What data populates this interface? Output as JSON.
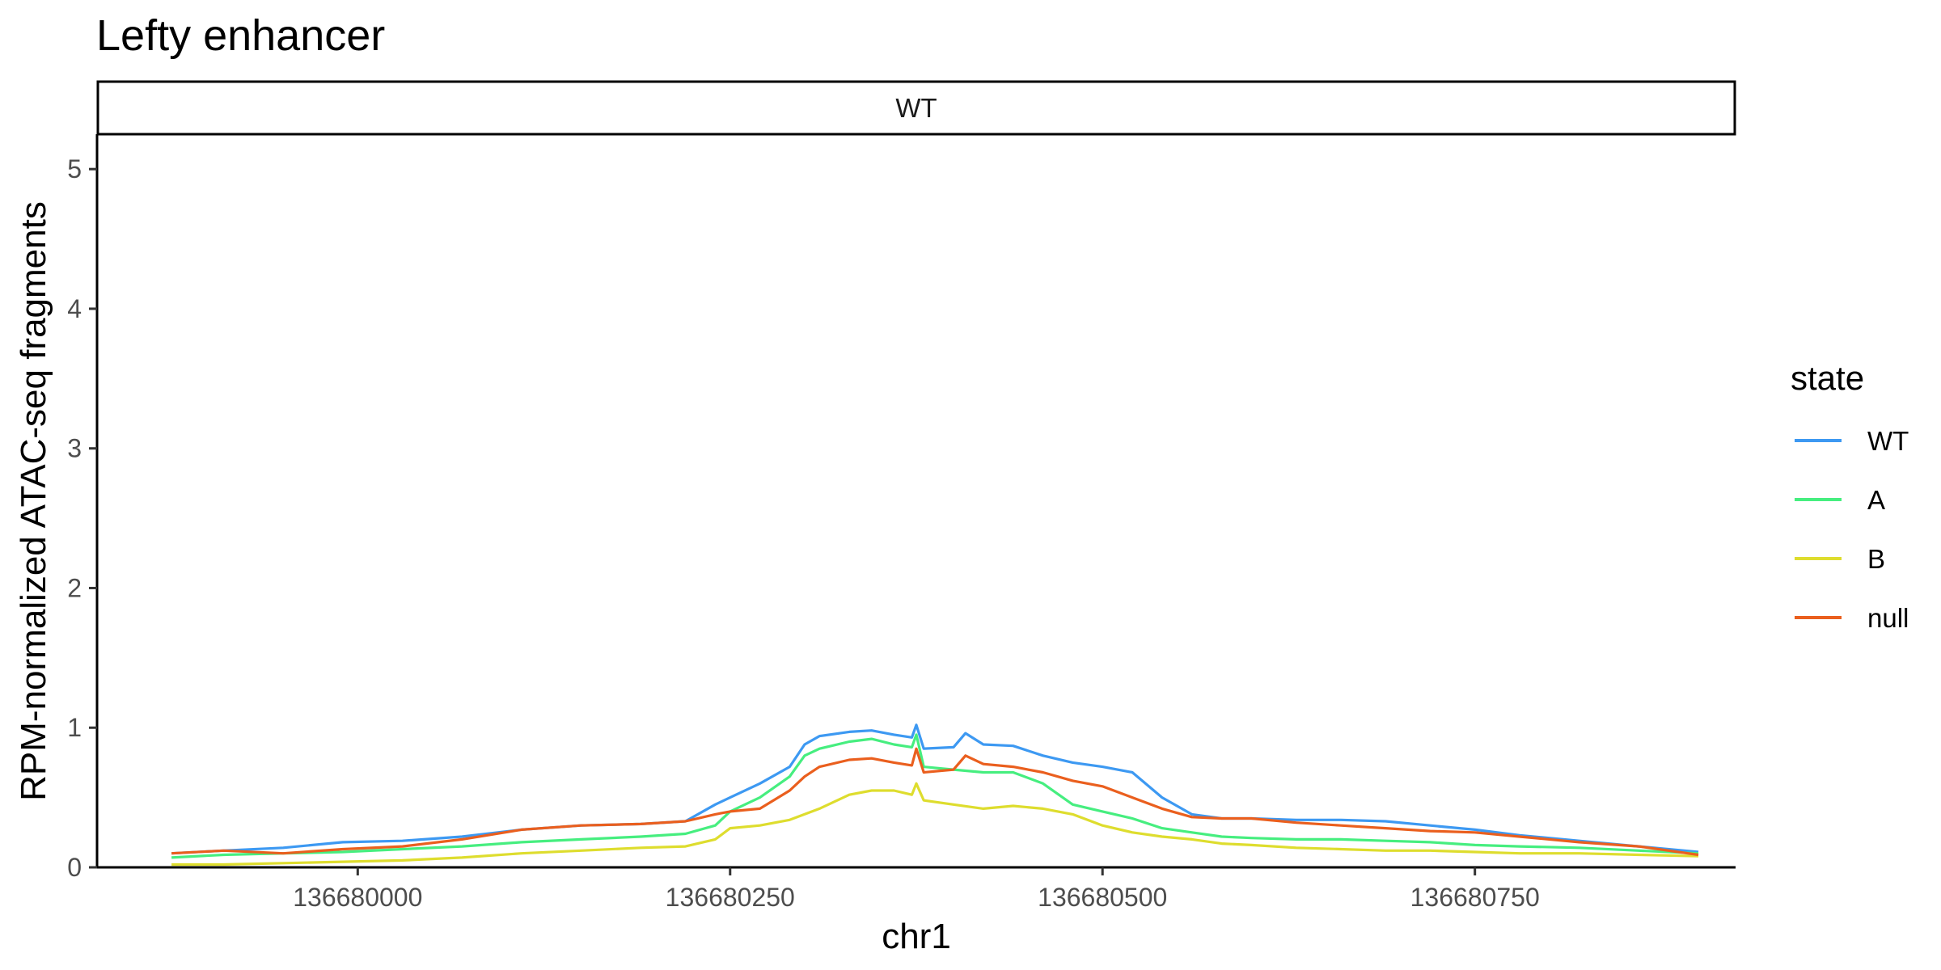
{
  "chart_data": {
    "type": "line",
    "title": "Lefty enhancer",
    "facet": "WT",
    "xlabel": "chr1",
    "ylabel": "RPM-normalized ATAC-seq fragments",
    "xlim": [
      136679825,
      136680925
    ],
    "ylim": [
      0,
      5.25
    ],
    "x_ticks": [
      136680000,
      136680250,
      136680500,
      136680750
    ],
    "x_tick_labels": [
      "136680000",
      "136680250",
      "136680500",
      "136680750"
    ],
    "y_ticks": [
      0,
      1,
      2,
      3,
      4,
      5
    ],
    "y_tick_labels": [
      "0",
      "1",
      "2",
      "3",
      "4",
      "5"
    ],
    "grid": false,
    "legend": {
      "title": "state",
      "position": "right"
    },
    "series": [
      {
        "name": "WT",
        "color": "#3d99f2",
        "x": [
          136679875,
          136679910,
          136679950,
          136679990,
          136680030,
          136680070,
          136680110,
          136680150,
          136680190,
          136680220,
          136680240,
          136680250,
          136680270,
          136680290,
          136680300,
          136680310,
          136680330,
          136680345,
          136680360,
          136680372,
          136680375,
          136680380,
          136680400,
          136680408,
          136680420,
          136680440,
          136680460,
          136680480,
          136680500,
          136680520,
          136680540,
          136680560,
          136680580,
          136680600,
          136680630,
          136680660,
          136680690,
          136680720,
          136680750,
          136680780,
          136680820,
          136680860,
          136680900
        ],
        "y": [
          0.1,
          0.12,
          0.14,
          0.18,
          0.19,
          0.22,
          0.27,
          0.3,
          0.31,
          0.33,
          0.45,
          0.5,
          0.6,
          0.72,
          0.88,
          0.94,
          0.97,
          0.98,
          0.95,
          0.93,
          1.02,
          0.85,
          0.86,
          0.96,
          0.88,
          0.87,
          0.8,
          0.75,
          0.72,
          0.68,
          0.5,
          0.38,
          0.35,
          0.35,
          0.34,
          0.34,
          0.33,
          0.3,
          0.27,
          0.23,
          0.19,
          0.15,
          0.11
        ]
      },
      {
        "name": "A",
        "color": "#46ee7f",
        "x": [
          136679875,
          136679910,
          136679950,
          136679990,
          136680030,
          136680070,
          136680110,
          136680150,
          136680190,
          136680220,
          136680240,
          136680250,
          136680270,
          136680290,
          136680300,
          136680310,
          136680330,
          136680345,
          136680360,
          136680372,
          136680375,
          136680380,
          136680400,
          136680420,
          136680440,
          136680460,
          136680480,
          136680500,
          136680520,
          136680540,
          136680560,
          136680580,
          136680600,
          136680630,
          136680660,
          136680690,
          136680720,
          136680750,
          136680780,
          136680820,
          136680860,
          136680900
        ],
        "y": [
          0.07,
          0.09,
          0.1,
          0.11,
          0.13,
          0.15,
          0.18,
          0.2,
          0.22,
          0.24,
          0.3,
          0.4,
          0.5,
          0.65,
          0.8,
          0.85,
          0.9,
          0.92,
          0.88,
          0.86,
          0.95,
          0.72,
          0.7,
          0.68,
          0.68,
          0.6,
          0.45,
          0.4,
          0.35,
          0.28,
          0.25,
          0.22,
          0.21,
          0.2,
          0.2,
          0.19,
          0.18,
          0.16,
          0.15,
          0.14,
          0.12,
          0.1
        ]
      },
      {
        "name": "B",
        "color": "#dedd2e",
        "x": [
          136679875,
          136679910,
          136679950,
          136679990,
          136680030,
          136680070,
          136680110,
          136680150,
          136680190,
          136680220,
          136680240,
          136680250,
          136680270,
          136680290,
          136680310,
          136680330,
          136680345,
          136680360,
          136680372,
          136680375,
          136680380,
          136680400,
          136680420,
          136680440,
          136680460,
          136680480,
          136680500,
          136680520,
          136680540,
          136680560,
          136680580,
          136680600,
          136680630,
          136680660,
          136680690,
          136680720,
          136680750,
          136680780,
          136680820,
          136680860,
          136680900
        ],
        "y": [
          0.02,
          0.02,
          0.03,
          0.04,
          0.05,
          0.07,
          0.1,
          0.12,
          0.14,
          0.15,
          0.2,
          0.28,
          0.3,
          0.34,
          0.42,
          0.52,
          0.55,
          0.55,
          0.52,
          0.6,
          0.48,
          0.45,
          0.42,
          0.44,
          0.42,
          0.38,
          0.3,
          0.25,
          0.22,
          0.2,
          0.17,
          0.16,
          0.14,
          0.13,
          0.12,
          0.12,
          0.11,
          0.1,
          0.1,
          0.09,
          0.08
        ]
      },
      {
        "name": "null",
        "color": "#ea5f1e",
        "x": [
          136679875,
          136679910,
          136679950,
          136679990,
          136680030,
          136680070,
          136680110,
          136680150,
          136680190,
          136680220,
          136680240,
          136680250,
          136680270,
          136680290,
          136680300,
          136680310,
          136680330,
          136680345,
          136680360,
          136680372,
          136680375,
          136680380,
          136680400,
          136680408,
          136680420,
          136680440,
          136680460,
          136680480,
          136680500,
          136680520,
          136680540,
          136680560,
          136680580,
          136680600,
          136680630,
          136680660,
          136680690,
          136680720,
          136680750,
          136680780,
          136680820,
          136680860,
          136680900
        ],
        "y": [
          0.1,
          0.12,
          0.1,
          0.13,
          0.15,
          0.2,
          0.27,
          0.3,
          0.31,
          0.33,
          0.38,
          0.4,
          0.42,
          0.55,
          0.65,
          0.72,
          0.77,
          0.78,
          0.75,
          0.73,
          0.85,
          0.68,
          0.7,
          0.8,
          0.74,
          0.72,
          0.68,
          0.62,
          0.58,
          0.5,
          0.42,
          0.36,
          0.35,
          0.35,
          0.32,
          0.3,
          0.28,
          0.26,
          0.25,
          0.22,
          0.18,
          0.15,
          0.09
        ]
      }
    ]
  }
}
